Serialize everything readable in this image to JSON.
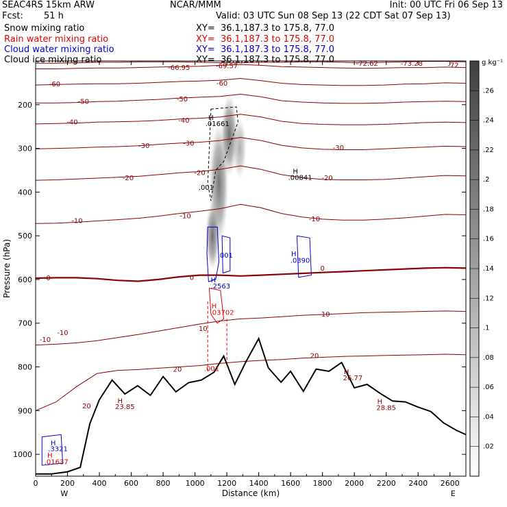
{
  "header": {
    "model": "SEAC4RS 15km ARW",
    "org": "NCAR/MMM",
    "init": "Init: 00 UTC Fri 06 Sep 13",
    "fcst_label": "Fcst:",
    "fcst_value": "51 h",
    "valid": "Valid: 03 UTC Sun 08 Sep 13 (22 CDT Sat 07 Sep 13)"
  },
  "fields": [
    {
      "name": "Snow mixing ratio",
      "xy": "XY=  36.1,187.3 to 175.8, 77.0",
      "color": "#000000"
    },
    {
      "name": "Rain water mixing ratio",
      "xy": "XY=  36.1,187.3 to 175.8, 77.0",
      "color": "#e00000"
    },
    {
      "name": "Cloud water mixing ratio",
      "xy": "XY=  36.1,187.3 to 175.8, 77.0",
      "color": "#0000d0"
    },
    {
      "name": "Cloud ice mixing ratio",
      "xy": "XY=  36.1,187.3 to 175.8, 77.0",
      "color": "#000000"
    }
  ],
  "colors": {
    "isotherm": "#8b0000",
    "rain": "#e00000",
    "cloud_water": "#0000d0",
    "terrain": "#000000",
    "snow_shading": "#555555"
  },
  "chart_data": {
    "type": "cross-section",
    "xlabel": "Distance (km)",
    "ylabel": "Pressure (hPa)",
    "xlim": [
      0,
      2700
    ],
    "ylim": [
      1050,
      100
    ],
    "x_ticks": [
      0,
      200,
      400,
      600,
      800,
      1000,
      1200,
      1400,
      1600,
      1800,
      2000,
      2200,
      2400,
      2600
    ],
    "y_ticks": [
      1000,
      900,
      800,
      700,
      600,
      500,
      400,
      300,
      200
    ],
    "end_labels": {
      "left": "W",
      "right": "E"
    },
    "isotherms_c": [
      {
        "t": -72,
        "p": [
          105,
          105,
          104,
          103,
          103,
          102,
          102,
          102,
          103,
          104,
          104,
          103,
          103,
          102,
          102,
          103,
          104,
          103,
          102,
          101,
          101,
          102
        ]
      },
      {
        "t": -66,
        "p": [
          118,
          118,
          117,
          116,
          116,
          115,
          114,
          113,
          112,
          110,
          108,
          110,
          113,
          114,
          115,
          116,
          117,
          116,
          115,
          115,
          114,
          115
        ]
      },
      {
        "t": -60,
        "p": [
          155,
          154,
          153,
          152,
          152,
          151,
          149,
          147,
          146,
          144,
          140,
          145,
          151,
          154,
          155,
          156,
          156,
          155,
          153,
          152,
          150,
          151
        ]
      },
      {
        "t": -50,
        "p": [
          196,
          196,
          195,
          193,
          192,
          190,
          188,
          185,
          183,
          181,
          176,
          182,
          191,
          194,
          196,
          197,
          197,
          196,
          194,
          193,
          192,
          193
        ]
      },
      {
        "t": -40,
        "p": [
          244,
          243,
          242,
          240,
          239,
          238,
          236,
          233,
          231,
          228,
          222,
          228,
          238,
          243,
          245,
          246,
          246,
          245,
          243,
          241,
          240,
          241
        ]
      },
      {
        "t": -30,
        "p": [
          301,
          300,
          299,
          297,
          296,
          294,
          291,
          288,
          286,
          282,
          275,
          282,
          293,
          299,
          302,
          303,
          303,
          301,
          299,
          297,
          295,
          296
        ]
      },
      {
        "t": -20,
        "p": [
          373,
          372,
          370,
          368,
          366,
          364,
          360,
          356,
          353,
          348,
          340,
          348,
          360,
          367,
          371,
          372,
          372,
          371,
          368,
          365,
          362,
          363
        ]
      },
      {
        "t": -10,
        "p": [
          472,
          471,
          469,
          466,
          463,
          460,
          455,
          449,
          444,
          438,
          428,
          436,
          449,
          457,
          462,
          464,
          464,
          462,
          459,
          455,
          451,
          452
        ]
      },
      {
        "t": 0,
        "p": [
          597,
          596,
          596,
          598,
          602,
          604,
          600,
          594,
          590,
          590,
          592,
          590,
          588,
          586,
          584,
          582,
          580,
          578,
          576,
          574,
          573,
          574
        ]
      },
      {
        "t": 10,
        "p": [
          750,
          748,
          745,
          740,
          733,
          726,
          718,
          710,
          702,
          695,
          690,
          688,
          685,
          682,
          680,
          678,
          676,
          675,
          674,
          673,
          672,
          673
        ]
      },
      {
        "t": 20,
        "p": [
          900,
          880,
          845,
          815,
          808,
          806,
          803,
          800,
          797,
          792,
          788,
          785,
          783,
          780,
          778,
          776,
          775,
          774,
          773,
          772,
          771,
          772
        ]
      }
    ],
    "terrain_hpa": {
      "x": [
        0,
        100,
        200,
        280,
        340,
        400,
        480,
        560,
        640,
        720,
        800,
        880,
        960,
        1040,
        1120,
        1180,
        1250,
        1320,
        1400,
        1460,
        1540,
        1600,
        1680,
        1760,
        1840,
        1920,
        2000,
        2080,
        2160,
        2240,
        2320,
        2400,
        2480,
        2560,
        2640,
        2700
      ],
      "p": [
        1045,
        1045,
        1040,
        1030,
        930,
        875,
        830,
        862,
        843,
        865,
        822,
        857,
        836,
        830,
        812,
        775,
        840,
        788,
        735,
        802,
        835,
        810,
        856,
        805,
        810,
        790,
        848,
        840,
        860,
        878,
        880,
        892,
        902,
        928,
        945,
        955
      ]
    },
    "colorbar": {
      "units": "g kg⁻¹",
      "ticks": [
        0.02,
        0.04,
        0.06,
        0.08,
        0.1,
        0.12,
        0.14,
        0.16,
        0.18,
        0.2,
        0.22,
        0.24,
        0.26
      ],
      "max": 0.28
    },
    "labels": [
      {
        "text": "-72",
        "x": 2620,
        "p": 110,
        "kind": "isotherm"
      },
      {
        "text": "-73.28",
        "x": 2360,
        "p": 106,
        "kind": "isotherm"
      },
      {
        "text": "-72.62",
        "x": 2080,
        "p": 106,
        "kind": "isotherm"
      },
      {
        "text": "-66.95",
        "x": 900,
        "p": 116,
        "kind": "isotherm"
      },
      {
        "text": "-69.57",
        "x": 1200,
        "p": 112,
        "kind": "isotherm"
      },
      {
        "text": "-60",
        "x": 120,
        "p": 153,
        "kind": "isotherm"
      },
      {
        "text": "-60",
        "x": 1170,
        "p": 152,
        "kind": "isotherm"
      },
      {
        "text": "-50",
        "x": 300,
        "p": 193,
        "kind": "isotherm"
      },
      {
        "text": "-50",
        "x": 920,
        "p": 188,
        "kind": "isotherm"
      },
      {
        "text": "-40",
        "x": 230,
        "p": 240,
        "kind": "isotherm"
      },
      {
        "text": "-40",
        "x": 930,
        "p": 236,
        "kind": "isotherm"
      },
      {
        "text": "-30",
        "x": 680,
        "p": 294,
        "kind": "isotherm"
      },
      {
        "text": "-30",
        "x": 960,
        "p": 289,
        "kind": "isotherm"
      },
      {
        "text": "-30",
        "x": 1900,
        "p": 299,
        "kind": "isotherm"
      },
      {
        "text": "-20",
        "x": 580,
        "p": 368,
        "kind": "isotherm"
      },
      {
        "text": "-20",
        "x": 1030,
        "p": 356,
        "kind": "isotherm"
      },
      {
        "text": "-20",
        "x": 1830,
        "p": 368,
        "kind": "isotherm"
      },
      {
        "text": "-10",
        "x": 260,
        "p": 466,
        "kind": "isotherm"
      },
      {
        "text": "-10",
        "x": 940,
        "p": 455,
        "kind": "isotherm"
      },
      {
        "text": "-10",
        "x": 1750,
        "p": 462,
        "kind": "isotherm"
      },
      {
        "text": "0",
        "x": 80,
        "p": 597,
        "kind": "isotherm"
      },
      {
        "text": "0",
        "x": 980,
        "p": 596,
        "kind": "isotherm"
      },
      {
        "text": "0",
        "x": 1800,
        "p": 575,
        "kind": "isotherm"
      },
      {
        "text": "-10",
        "x": 60,
        "p": 738,
        "kind": "isotherm"
      },
      {
        "text": "-10",
        "x": 170,
        "p": 722,
        "kind": "isotherm"
      },
      {
        "text": "10",
        "x": 1050,
        "p": 713,
        "kind": "isotherm"
      },
      {
        "text": "10",
        "x": 1820,
        "p": 680,
        "kind": "isotherm"
      },
      {
        "text": "20",
        "x": 890,
        "p": 806,
        "kind": "isotherm"
      },
      {
        "text": "20",
        "x": 1750,
        "p": 775,
        "kind": "isotherm"
      },
      {
        "text": "20",
        "x": 320,
        "p": 890,
        "kind": "isotherm"
      },
      {
        "text": "H",
        "x": 1100,
        "p": 230,
        "kind": "max_black"
      },
      {
        "text": ".01661",
        "x": 1140,
        "p": 244,
        "kind": "max_black"
      },
      {
        "text": ".001",
        "x": 1070,
        "p": 390,
        "kind": "max_black"
      },
      {
        "text": "H",
        "x": 1630,
        "p": 353,
        "kind": "max_black"
      },
      {
        "text": ".00841",
        "x": 1660,
        "p": 367,
        "kind": "max_black"
      },
      {
        "text": "H",
        "x": 1620,
        "p": 542,
        "kind": "max_blue"
      },
      {
        "text": ".0390",
        "x": 1660,
        "p": 557,
        "kind": "max_blue"
      },
      {
        "text": ".001",
        "x": 1190,
        "p": 545,
        "kind": "max_blue"
      },
      {
        "text": "H",
        "x": 1115,
        "p": 602,
        "kind": "max_blue"
      },
      {
        "text": ".2563",
        "x": 1160,
        "p": 616,
        "kind": "max_blue"
      },
      {
        "text": "H",
        "x": 1120,
        "p": 661,
        "kind": "max_red"
      },
      {
        "text": ".03702",
        "x": 1170,
        "p": 676,
        "kind": "max_red"
      },
      {
        "text": ".001",
        "x": 1105,
        "p": 805,
        "kind": "max_red"
      },
      {
        "text": "H",
        "x": 530,
        "p": 878,
        "kind": "max_isotherm"
      },
      {
        "text": "23.85",
        "x": 560,
        "p": 892,
        "kind": "max_isotherm"
      },
      {
        "text": "H",
        "x": 1950,
        "p": 812,
        "kind": "max_isotherm"
      },
      {
        "text": "26.77",
        "x": 1990,
        "p": 826,
        "kind": "max_isotherm"
      },
      {
        "text": "H",
        "x": 2160,
        "p": 880,
        "kind": "max_isotherm"
      },
      {
        "text": "28.85",
        "x": 2200,
        "p": 894,
        "kind": "max_isotherm"
      },
      {
        "text": "H",
        "x": 110,
        "p": 975,
        "kind": "max_blue"
      },
      {
        "text": ".3321",
        "x": 140,
        "p": 988,
        "kind": "max_blue"
      },
      {
        "text": "H",
        "x": 90,
        "p": 1003,
        "kind": "max_red"
      },
      {
        "text": ".01637",
        "x": 130,
        "p": 1018,
        "kind": "max_red"
      }
    ]
  }
}
